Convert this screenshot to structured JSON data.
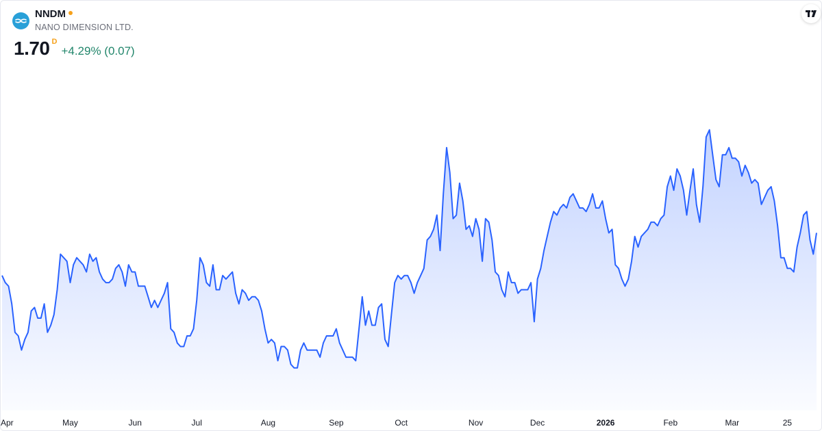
{
  "header": {
    "ticker": "NNDM",
    "company": "NANO DIMENSION LTD.",
    "price": "1.70",
    "price_unit": "D",
    "change": "+4.29% (0.07)",
    "logo_icon": "nano-dimension-logo",
    "brand_icon": "tradingview-logo",
    "status_color": "#f6a11b",
    "change_color": "#22866b"
  },
  "chart_data": {
    "type": "area",
    "line_color": "#2962ff",
    "fill_color": "#2962ff",
    "grid": false,
    "legend": "none",
    "x_axis_labels": [
      {
        "label": "Apr",
        "index": 0
      },
      {
        "label": "May",
        "index": 21
      },
      {
        "label": "Jun",
        "index": 41
      },
      {
        "label": "Jul",
        "index": 60
      },
      {
        "label": "Aug",
        "index": 82
      },
      {
        "label": "Sep",
        "index": 103
      },
      {
        "label": "Oct",
        "index": 123
      },
      {
        "label": "Nov",
        "index": 146
      },
      {
        "label": "Dec",
        "index": 165
      },
      {
        "label": "2026",
        "index": 186,
        "year": true
      },
      {
        "label": "Feb",
        "index": 206
      },
      {
        "label": "Mar",
        "index": 225
      },
      {
        "label": "25",
        "index": 242
      }
    ],
    "ylim": [
      1.2,
      2.24
    ],
    "values": [
      1.58,
      1.56,
      1.55,
      1.5,
      1.42,
      1.41,
      1.37,
      1.4,
      1.42,
      1.48,
      1.49,
      1.46,
      1.46,
      1.5,
      1.42,
      1.44,
      1.47,
      1.54,
      1.64,
      1.63,
      1.62,
      1.56,
      1.61,
      1.63,
      1.62,
      1.61,
      1.59,
      1.64,
      1.62,
      1.63,
      1.59,
      1.57,
      1.56,
      1.56,
      1.57,
      1.6,
      1.61,
      1.59,
      1.55,
      1.61,
      1.59,
      1.59,
      1.55,
      1.55,
      1.55,
      1.52,
      1.49,
      1.51,
      1.49,
      1.51,
      1.53,
      1.56,
      1.43,
      1.42,
      1.39,
      1.38,
      1.38,
      1.41,
      1.41,
      1.43,
      1.51,
      1.63,
      1.61,
      1.56,
      1.55,
      1.61,
      1.54,
      1.54,
      1.58,
      1.57,
      1.58,
      1.59,
      1.53,
      1.5,
      1.54,
      1.53,
      1.51,
      1.52,
      1.52,
      1.51,
      1.48,
      1.43,
      1.39,
      1.4,
      1.39,
      1.34,
      1.38,
      1.38,
      1.37,
      1.33,
      1.32,
      1.32,
      1.37,
      1.39,
      1.37,
      1.37,
      1.37,
      1.37,
      1.35,
      1.39,
      1.41,
      1.41,
      1.41,
      1.43,
      1.39,
      1.37,
      1.35,
      1.35,
      1.35,
      1.34,
      1.43,
      1.52,
      1.44,
      1.48,
      1.44,
      1.44,
      1.49,
      1.5,
      1.4,
      1.38,
      1.47,
      1.56,
      1.58,
      1.57,
      1.58,
      1.58,
      1.56,
      1.53,
      1.56,
      1.58,
      1.6,
      1.68,
      1.69,
      1.71,
      1.75,
      1.65,
      1.81,
      1.94,
      1.87,
      1.74,
      1.75,
      1.84,
      1.79,
      1.71,
      1.72,
      1.69,
      1.74,
      1.71,
      1.62,
      1.74,
      1.73,
      1.68,
      1.59,
      1.58,
      1.54,
      1.52,
      1.59,
      1.56,
      1.56,
      1.53,
      1.54,
      1.54,
      1.54,
      1.56,
      1.45,
      1.57,
      1.6,
      1.65,
      1.69,
      1.73,
      1.76,
      1.75,
      1.77,
      1.78,
      1.77,
      1.8,
      1.81,
      1.79,
      1.77,
      1.77,
      1.76,
      1.78,
      1.81,
      1.77,
      1.77,
      1.79,
      1.74,
      1.7,
      1.71,
      1.61,
      1.6,
      1.57,
      1.55,
      1.57,
      1.62,
      1.69,
      1.66,
      1.69,
      1.7,
      1.71,
      1.73,
      1.73,
      1.72,
      1.74,
      1.75,
      1.83,
      1.86,
      1.82,
      1.88,
      1.86,
      1.82,
      1.75,
      1.82,
      1.88,
      1.78,
      1.73,
      1.83,
      1.97,
      1.99,
      1.92,
      1.85,
      1.83,
      1.92,
      1.92,
      1.94,
      1.91,
      1.91,
      1.9,
      1.86,
      1.89,
      1.87,
      1.84,
      1.85,
      1.84,
      1.78,
      1.8,
      1.82,
      1.83,
      1.79,
      1.72,
      1.63,
      1.63,
      1.6,
      1.6,
      1.59,
      1.66,
      1.7,
      1.75,
      1.76,
      1.68,
      1.64,
      1.7
    ]
  }
}
